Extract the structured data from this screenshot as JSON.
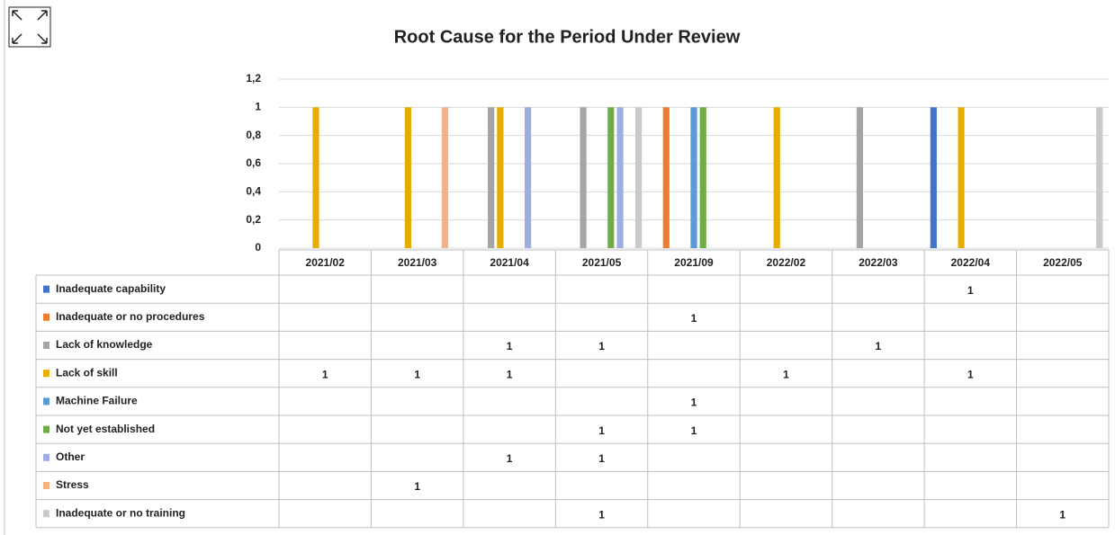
{
  "chart_data": {
    "type": "bar",
    "title": "Root Cause for the Period Under Review",
    "categories": [
      "2021/02",
      "2021/03",
      "2021/04",
      "2021/05",
      "2021/09",
      "2022/02",
      "2022/03",
      "2022/04",
      "2022/05"
    ],
    "series": [
      {
        "name": "Inadequate capability",
        "color": "#4472c4",
        "values": [
          null,
          null,
          null,
          null,
          null,
          null,
          null,
          1,
          null
        ]
      },
      {
        "name": "Inadequate or no procedures",
        "color": "#ed7d31",
        "values": [
          null,
          null,
          null,
          null,
          1,
          null,
          null,
          null,
          null
        ]
      },
      {
        "name": "Lack of knowledge",
        "color": "#a5a5a5",
        "values": [
          null,
          null,
          1,
          1,
          null,
          null,
          1,
          null,
          null
        ]
      },
      {
        "name": "Lack of skill",
        "color": "#e6ad00",
        "values": [
          1,
          1,
          1,
          null,
          null,
          1,
          null,
          1,
          null
        ]
      },
      {
        "name": "Machine Failure",
        "color": "#5b9bd5",
        "values": [
          null,
          null,
          null,
          null,
          1,
          null,
          null,
          null,
          null
        ]
      },
      {
        "name": "Not yet established",
        "color": "#70ad47",
        "values": [
          null,
          null,
          null,
          1,
          1,
          null,
          null,
          null,
          null
        ]
      },
      {
        "name": "Other",
        "color": "#9dade0",
        "values": [
          null,
          null,
          1,
          1,
          null,
          null,
          null,
          null,
          null
        ]
      },
      {
        "name": "Stress",
        "color": "#f4b183",
        "values": [
          null,
          1,
          null,
          null,
          null,
          null,
          null,
          null,
          null
        ]
      },
      {
        "name": "Inadequate or no training",
        "color": "#c9c9c9",
        "values": [
          null,
          null,
          null,
          1,
          null,
          null,
          null,
          null,
          1
        ]
      }
    ],
    "ylim": [
      0,
      1.2
    ],
    "yticks": [
      0,
      {
        "value": 0.2,
        "label": "0,2"
      },
      {
        "value": 0.4,
        "label": "0,4"
      },
      {
        "value": 0.6,
        "label": "0,6"
      },
      {
        "value": 0.8,
        "label": "0,8"
      },
      1,
      {
        "value": 1.2,
        "label": "1,2"
      }
    ],
    "grid": true
  }
}
